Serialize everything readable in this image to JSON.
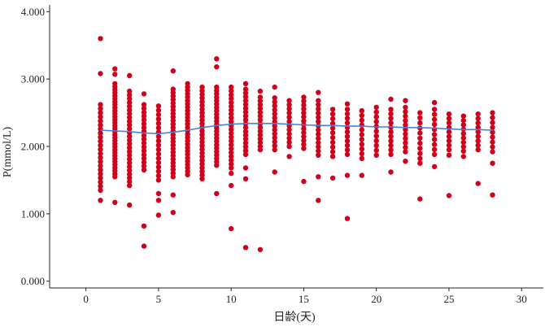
{
  "chart_data": {
    "type": "scatter",
    "title": "",
    "xlabel": "日龄(天)",
    "ylabel": "P(mmol/L)",
    "xlim": [
      -2.5,
      31.5
    ],
    "ylim": [
      -0.1,
      4.1
    ],
    "x_ticks": [
      0,
      5,
      10,
      15,
      20,
      25,
      30
    ],
    "x_tick_labels": [
      "0",
      "5",
      "10",
      "15",
      "20",
      "25",
      "30"
    ],
    "y_ticks": [
      0,
      1,
      2,
      3,
      4
    ],
    "y_tick_labels": [
      "0.000",
      "1.000",
      "2.000",
      "3.000",
      "4.000"
    ],
    "grid": false,
    "legend": "none",
    "point_color": "#d0021b",
    "line_color": "#4a80d9",
    "columns": [
      {
        "x": 1,
        "lo": 1.35,
        "hi": 2.62,
        "n": 22,
        "extra": [
          3.6,
          3.08,
          1.2
        ]
      },
      {
        "x": 2,
        "lo": 1.55,
        "hi": 2.93,
        "n": 32,
        "extra": [
          3.15,
          3.07,
          1.17
        ]
      },
      {
        "x": 3,
        "lo": 1.42,
        "hi": 2.82,
        "n": 26,
        "extra": [
          3.05,
          1.13
        ]
      },
      {
        "x": 4,
        "lo": 1.65,
        "hi": 2.62,
        "n": 18,
        "extra": [
          2.78,
          0.82,
          0.52
        ]
      },
      {
        "x": 5,
        "lo": 1.5,
        "hi": 2.6,
        "n": 18,
        "extra": [
          1.3,
          1.2,
          0.98
        ]
      },
      {
        "x": 6,
        "lo": 1.55,
        "hi": 2.85,
        "n": 26,
        "extra": [
          3.12,
          1.28,
          1.02
        ]
      },
      {
        "x": 7,
        "lo": 1.58,
        "hi": 2.93,
        "n": 28,
        "extra": []
      },
      {
        "x": 8,
        "lo": 1.52,
        "hi": 2.88,
        "n": 26,
        "extra": []
      },
      {
        "x": 9,
        "lo": 1.72,
        "hi": 2.88,
        "n": 24,
        "extra": [
          3.3,
          3.18,
          1.3
        ]
      },
      {
        "x": 10,
        "lo": 1.68,
        "hi": 2.88,
        "n": 22,
        "extra": [
          1.6,
          1.42,
          0.78
        ]
      },
      {
        "x": 11,
        "lo": 1.88,
        "hi": 2.85,
        "n": 18,
        "extra": [
          2.93,
          1.68,
          1.52,
          0.5
        ]
      },
      {
        "x": 12,
        "lo": 2.0,
        "hi": 2.73,
        "n": 14,
        "extra": [
          2.82,
          1.95,
          0.47
        ]
      },
      {
        "x": 13,
        "lo": 1.95,
        "hi": 2.72,
        "n": 14,
        "extra": [
          2.88,
          1.62
        ]
      },
      {
        "x": 14,
        "lo": 2.0,
        "hi": 2.68,
        "n": 12,
        "extra": [
          1.85
        ]
      },
      {
        "x": 15,
        "lo": 1.97,
        "hi": 2.73,
        "n": 14,
        "extra": [
          1.48
        ]
      },
      {
        "x": 16,
        "lo": 1.87,
        "hi": 2.68,
        "n": 14,
        "extra": [
          2.8,
          1.55,
          1.2
        ]
      },
      {
        "x": 17,
        "lo": 1.85,
        "hi": 2.55,
        "n": 11,
        "extra": [
          1.53
        ]
      },
      {
        "x": 18,
        "lo": 1.88,
        "hi": 2.55,
        "n": 11,
        "extra": [
          2.63,
          1.57,
          0.93
        ]
      },
      {
        "x": 19,
        "lo": 1.82,
        "hi": 2.53,
        "n": 11,
        "extra": [
          1.57
        ]
      },
      {
        "x": 20,
        "lo": 1.87,
        "hi": 2.58,
        "n": 11,
        "extra": []
      },
      {
        "x": 21,
        "lo": 1.88,
        "hi": 2.55,
        "n": 11,
        "extra": [
          2.7,
          1.62
        ]
      },
      {
        "x": 22,
        "lo": 1.92,
        "hi": 2.58,
        "n": 11,
        "extra": [
          2.68,
          1.78
        ]
      },
      {
        "x": 23,
        "lo": 1.82,
        "hi": 2.5,
        "n": 10,
        "extra": [
          1.75,
          1.22
        ]
      },
      {
        "x": 24,
        "lo": 1.88,
        "hi": 2.55,
        "n": 10,
        "extra": [
          2.65,
          1.7
        ]
      },
      {
        "x": 25,
        "lo": 1.95,
        "hi": 2.48,
        "n": 9,
        "extra": [
          1.87,
          1.27
        ]
      },
      {
        "x": 26,
        "lo": 1.93,
        "hi": 2.45,
        "n": 9,
        "extra": [
          1.85
        ]
      },
      {
        "x": 27,
        "lo": 1.95,
        "hi": 2.48,
        "n": 9,
        "extra": [
          1.45
        ]
      },
      {
        "x": 28,
        "lo": 1.92,
        "hi": 2.5,
        "n": 9,
        "extra": [
          1.75,
          1.28
        ]
      }
    ],
    "fit_line": {
      "x": [
        1,
        2,
        3,
        4,
        5,
        6,
        7,
        8,
        9,
        10,
        11,
        12,
        13,
        14,
        15,
        16,
        17,
        18,
        19,
        20,
        21,
        22,
        23,
        24,
        25,
        26,
        27,
        28
      ],
      "y": [
        2.24,
        2.23,
        2.22,
        2.2,
        2.19,
        2.21,
        2.24,
        2.28,
        2.31,
        2.33,
        2.34,
        2.34,
        2.34,
        2.33,
        2.32,
        2.31,
        2.31,
        2.3,
        2.3,
        2.29,
        2.29,
        2.28,
        2.28,
        2.27,
        2.26,
        2.25,
        2.25,
        2.24
      ]
    }
  }
}
